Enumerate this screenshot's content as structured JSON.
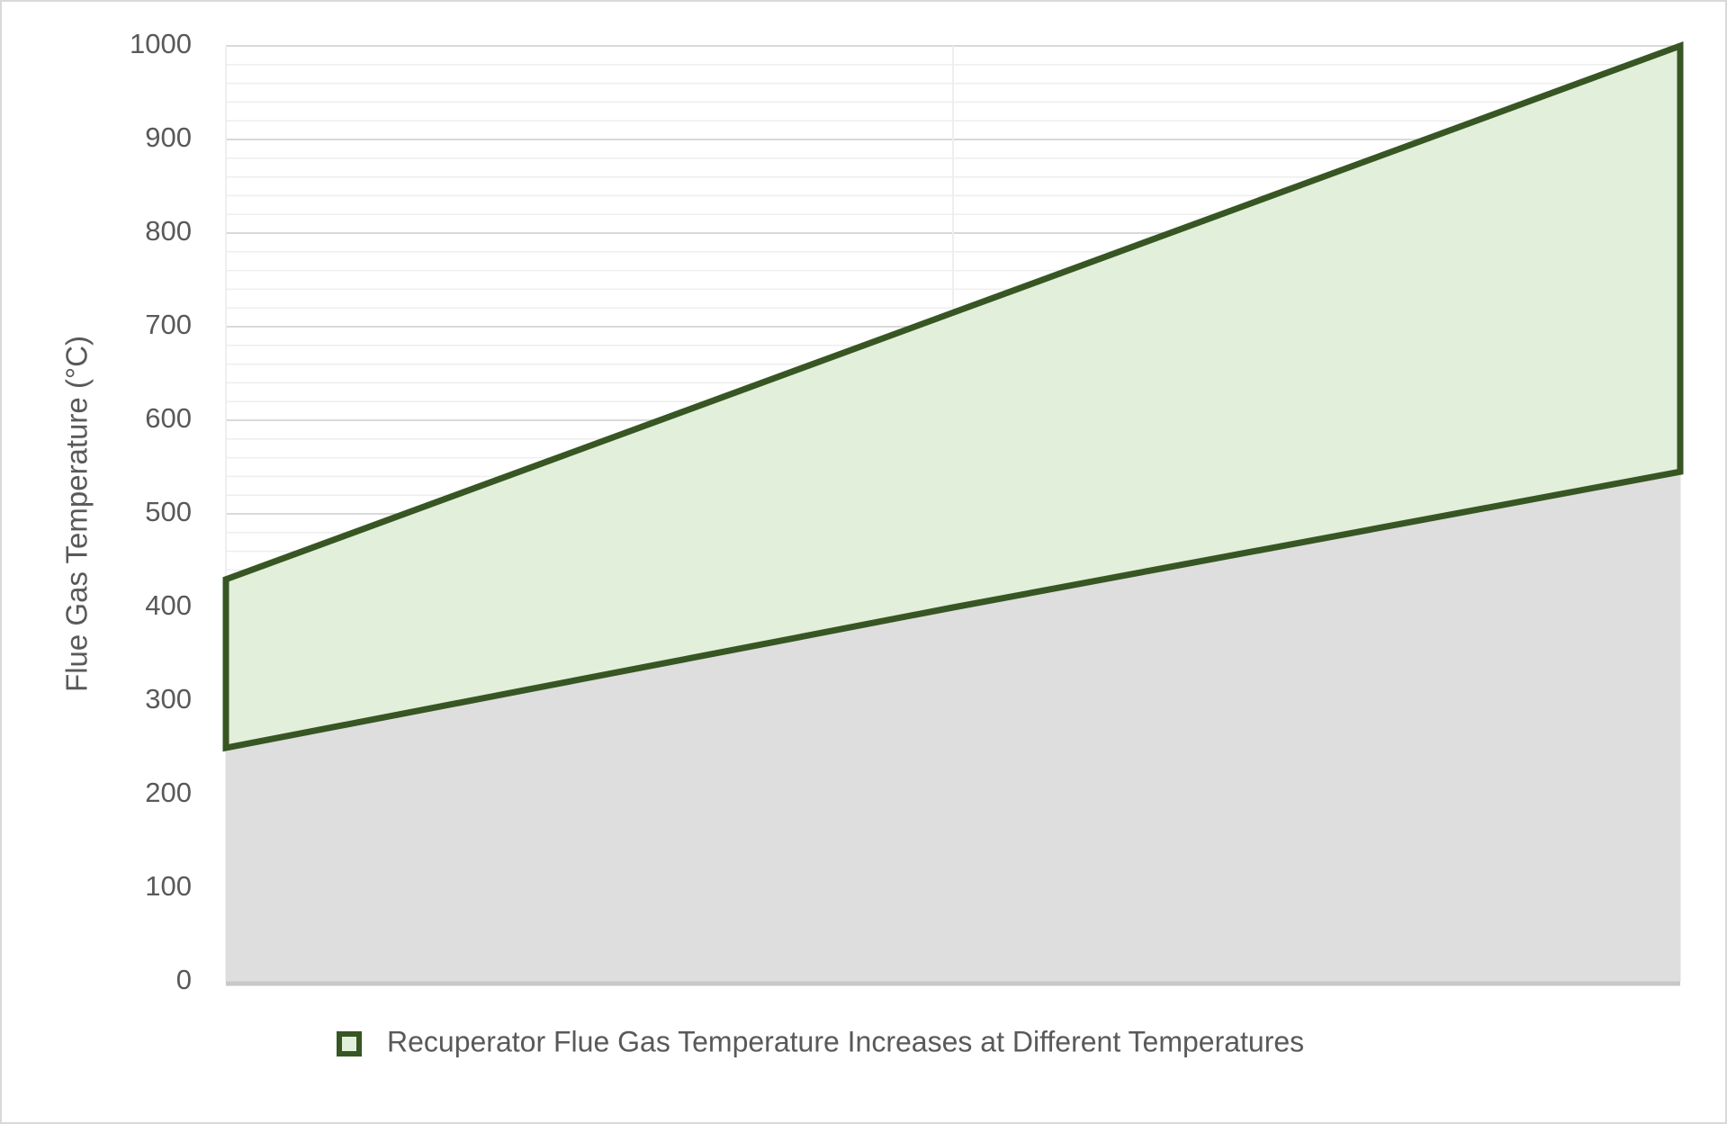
{
  "chart_data": {
    "type": "area",
    "stacked": true,
    "y_label": "Flue Gas Temperature (°C)",
    "categories": [
      null,
      null,
      null
    ],
    "series": [
      {
        "color": "#dedede",
        "values": [
          250,
          400,
          545
        ]
      },
      {
        "name": "Recuperator Flue Gas Temperature Increases at Different Temperatures",
        "color": "#e2efda",
        "line_color": "#375623",
        "values": [
          180,
          315,
          455
        ]
      }
    ],
    "ylim": [
      0,
      1000
    ],
    "yticks": [
      0,
      100,
      200,
      300,
      400,
      500,
      600,
      700,
      800,
      900,
      1000
    ],
    "minor_yticks": [
      20,
      40,
      60,
      80,
      120,
      140,
      160,
      180,
      220,
      240,
      260,
      280,
      320,
      340,
      360,
      380,
      420,
      440,
      460,
      480,
      520,
      540,
      560,
      580,
      620,
      640,
      660,
      680,
      720,
      740,
      760,
      780,
      820,
      840,
      860,
      880,
      920,
      940,
      960,
      980
    ],
    "grid": true,
    "legend": "bottom"
  }
}
